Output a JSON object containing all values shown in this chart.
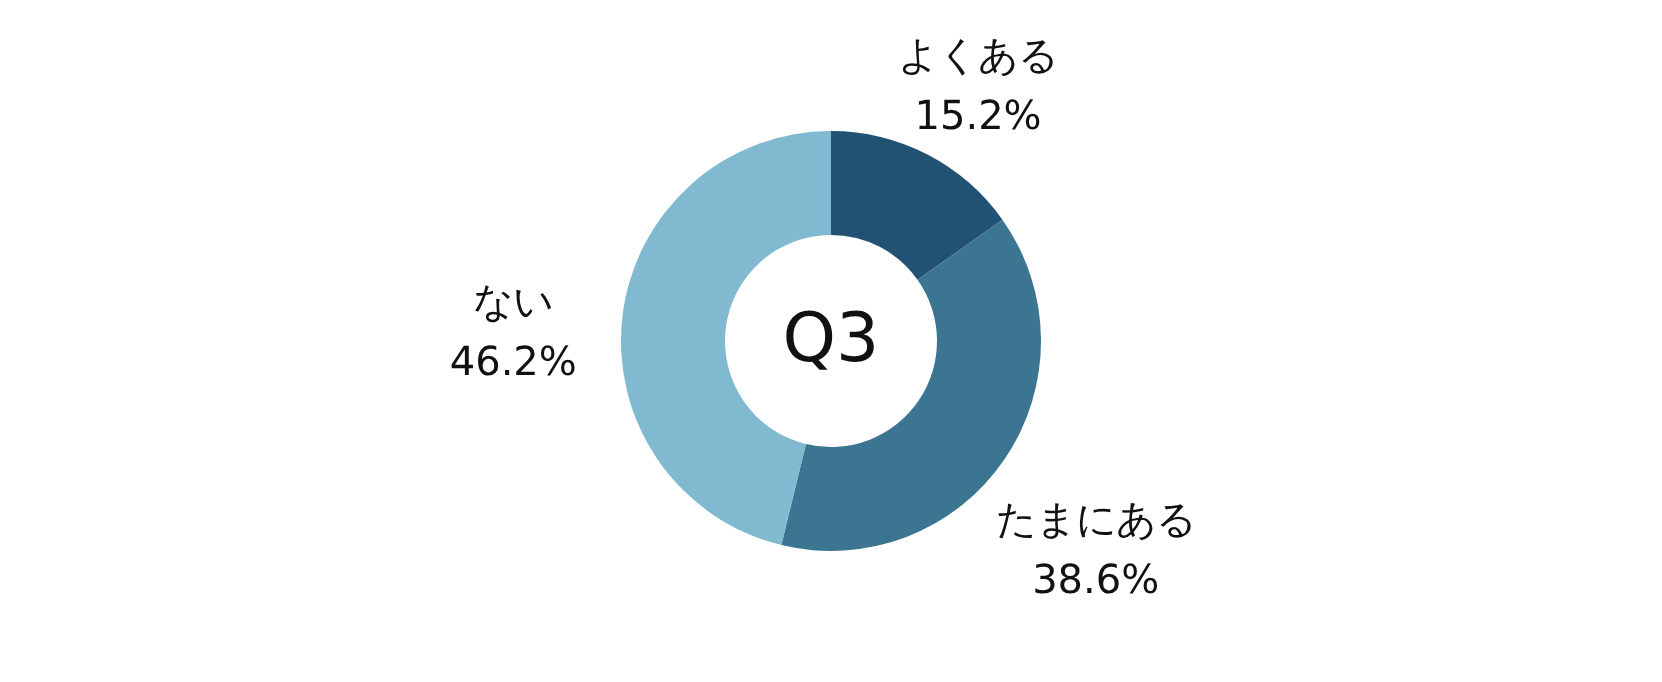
{
  "chart_data": {
    "type": "donut",
    "title": "Q3",
    "categories": [
      "よくある",
      "たまにある",
      "ない"
    ],
    "values": [
      15.2,
      38.6,
      46.2
    ],
    "value_labels": [
      "15.2%",
      "38.6%",
      "46.2%"
    ],
    "colors": [
      "#215274",
      "#3b7591",
      "#80b9d0"
    ]
  }
}
